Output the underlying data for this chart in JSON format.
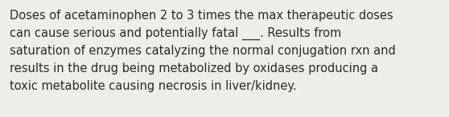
{
  "background_color": "#eeeee8",
  "text_color": "#2a2a2a",
  "lines": [
    "Doses of acetaminophen 2 to 3 times the max therapeutic doses",
    "can cause serious and potentially fatal ___. Results from",
    "saturation of enzymes catalyzing the normal conjugation rxn and",
    "results in the drug being metabolized by oxidases producing a",
    "toxic metabolite causing necrosis in liver/kidney."
  ],
  "font_size": 10.5,
  "font_family": "DejaVu Sans",
  "fig_width": 5.58,
  "fig_height": 1.46,
  "dpi": 100
}
